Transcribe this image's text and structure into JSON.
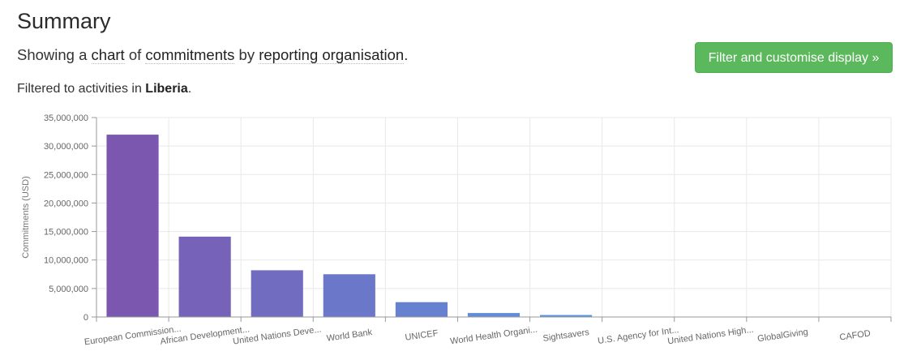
{
  "header": {
    "title": "Summary",
    "showing_prefix": "Showing a",
    "showing_chart": "chart",
    "showing_of": "of",
    "showing_measure": "commitments",
    "showing_by": "by",
    "showing_dimension": "reporting organisation",
    "showing_suffix": ".",
    "filter_button": "Filter and customise display »",
    "filtered_prefix": "Filtered to activities in",
    "filtered_country": "Liberia",
    "filtered_suffix": "."
  },
  "colors": {
    "button": "#5cb85c",
    "bar_start": "#7c57b0",
    "bar_end": "#5a96e0",
    "grid": "#e8e8e8",
    "axis": "#999999"
  },
  "chart_data": {
    "type": "bar",
    "ylabel": "Commitments (USD)",
    "xlabel": "",
    "ylim": [
      0,
      35000000
    ],
    "yticks": [
      0,
      5000000,
      10000000,
      15000000,
      20000000,
      25000000,
      30000000,
      35000000
    ],
    "ytick_labels": [
      "0",
      "5,000,000",
      "10,000,000",
      "15,000,000",
      "20,000,000",
      "25,000,000",
      "30,000,000",
      "35,000,000"
    ],
    "grid": true,
    "categories": [
      "European Commission...",
      "African Development...",
      "United Nations Deve...",
      "World Bank",
      "UNICEF",
      "World Health Organi...",
      "Sightsavers",
      "U.S. Agency for Int...",
      "United Nations High...",
      "GlobalGiving",
      "CAFOD"
    ],
    "values": [
      32000000,
      14100000,
      8200000,
      7500000,
      2600000,
      700000,
      350000,
      40000,
      20000,
      10000,
      5000
    ]
  }
}
